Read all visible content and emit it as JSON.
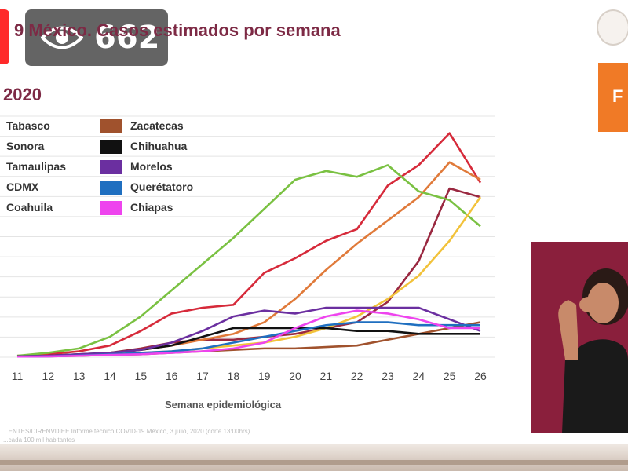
{
  "header": {
    "title": "9 México. Casos estimados por semana",
    "year": "2020",
    "viewer_count": "662",
    "side_button_letter": "F"
  },
  "footer": {
    "source_line1": "...ENTES/DIRENVDIEE Informe técnico COVID-19 México, 3 julio, 2020 (corte 13:00hrs)",
    "source_line2": "...cada 100 mil habitantes"
  },
  "colors": {
    "title": "#7d2a45",
    "accent_orange": "#f07a26",
    "live_red": "#ff2a2a"
  },
  "chart_data": {
    "type": "line",
    "x": [
      11,
      12,
      13,
      14,
      15,
      16,
      17,
      18,
      19,
      20,
      21,
      22,
      23,
      24,
      25,
      26
    ],
    "xlabel": "Semana epidemiológica",
    "ylabel": "",
    "grid": true,
    "legend_position": "top-left",
    "series": [
      {
        "name": "Tabasco",
        "color": "#d62a3a",
        "values": [
          0.5,
          1,
          2,
          4,
          9,
          15,
          17,
          18,
          29,
          34,
          40,
          44,
          59,
          66,
          77,
          60
        ]
      },
      {
        "name": "Sonora",
        "color": "#9a2840",
        "values": [
          0.2,
          0.4,
          0.8,
          1.5,
          3,
          5,
          6,
          6,
          7,
          8,
          10,
          12,
          19,
          33,
          58,
          55
        ]
      },
      {
        "name": "Tamaulipas",
        "color": "#e07a3a",
        "values": [
          0.2,
          0.4,
          0.8,
          1.5,
          2.5,
          4,
          6,
          8,
          12,
          20,
          30,
          39,
          47,
          55,
          67,
          61
        ]
      },
      {
        "name": "CDMX",
        "color": "#7ac142",
        "values": [
          0.5,
          1.5,
          3,
          7,
          14,
          23,
          32,
          41,
          51,
          61,
          64,
          62,
          66,
          57,
          54,
          45
        ]
      },
      {
        "name": "Coahuila",
        "color": "#f2c23a",
        "values": [
          0.2,
          0.4,
          0.6,
          1,
          1.5,
          2,
          3,
          4,
          5,
          7,
          10,
          14,
          20,
          28,
          40,
          55
        ]
      },
      {
        "name": "Zacatecas",
        "color": "#a0522d",
        "values": [
          0.2,
          0.3,
          0.5,
          0.8,
          1,
          1.5,
          2,
          2.5,
          3,
          3,
          3.5,
          4,
          6,
          8,
          10,
          12
        ]
      },
      {
        "name": "Chihuahua",
        "color": "#111111",
        "values": [
          0.3,
          0.5,
          1,
          1.5,
          2.5,
          4,
          7,
          10,
          10,
          10,
          10,
          9,
          9,
          8,
          8,
          8
        ]
      },
      {
        "name": "Morelos",
        "color": "#6b2fa0",
        "values": [
          0.3,
          0.5,
          1,
          1.5,
          2.5,
          5,
          9,
          14,
          16,
          15,
          17,
          17,
          17,
          17,
          13,
          9
        ]
      },
      {
        "name": "Querétatoro",
        "color": "#1f6fc0",
        "values": [
          0.2,
          0.3,
          0.6,
          1,
          1.5,
          2,
          3,
          5,
          7,
          9,
          11,
          12,
          12,
          11,
          11,
          11
        ]
      },
      {
        "name": "Chiapas",
        "color": "#ee44ee",
        "values": [
          0.2,
          0.3,
          0.5,
          0.8,
          1,
          1.5,
          2,
          3,
          5,
          10,
          14,
          16,
          15,
          13,
          10,
          10
        ]
      }
    ],
    "ylim": [
      0,
      85
    ]
  }
}
